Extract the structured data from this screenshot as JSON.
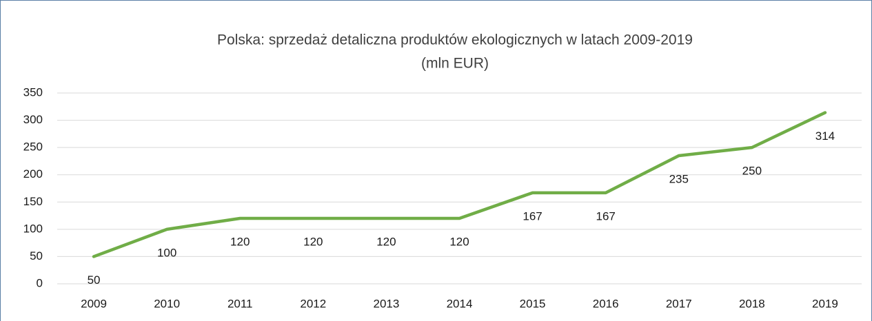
{
  "chart_data": {
    "type": "line",
    "title": "Polska: sprzedaż detaliczna produktów ekologicznych w latach 2009-2019",
    "subtitle": "(mln EUR)",
    "categories": [
      "2009",
      "2010",
      "2011",
      "2012",
      "2013",
      "2014",
      "2015",
      "2016",
      "2017",
      "2018",
      "2019"
    ],
    "series": [
      {
        "name": "sprzedaż",
        "color": "#70ad47",
        "values": [
          50,
          100,
          120,
          120,
          120,
          120,
          167,
          167,
          235,
          250,
          314
        ]
      }
    ],
    "ylim": [
      0,
      350
    ],
    "yticks": [
      0,
      50,
      100,
      150,
      200,
      250,
      300,
      350
    ],
    "grid": true,
    "legend": false
  }
}
